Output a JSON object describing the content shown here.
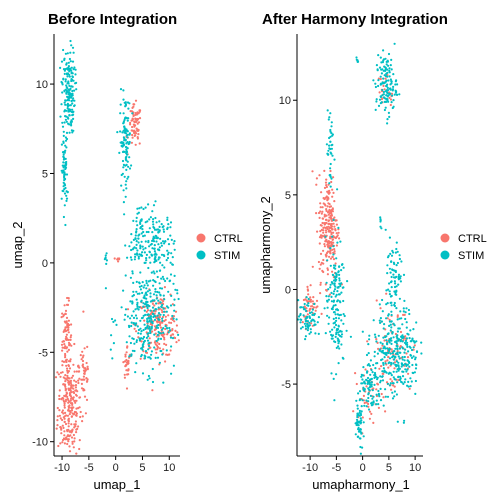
{
  "chart_data": [
    {
      "type": "scatter",
      "title": "Before Integration",
      "xlabel": "umap_1",
      "ylabel": "umap_2",
      "xlim": [
        -11.5,
        12
      ],
      "ylim": [
        -10.8,
        12.8
      ],
      "xticks": [
        -10,
        -5,
        0,
        5,
        10
      ],
      "yticks": [
        -10,
        -5,
        0,
        5,
        10
      ],
      "xtick_labels": [
        "-10",
        "-5",
        "0",
        "5",
        "10"
      ],
      "ytick_labels": [
        "-10",
        "-5",
        "0",
        "5",
        "10"
      ],
      "grid": false,
      "legend": {
        "placement": "right",
        "entries": [
          {
            "label": "CTRL",
            "color": "#F8766D"
          },
          {
            "label": "STIM",
            "color": "#00BFC4"
          }
        ]
      },
      "series": [
        {
          "name": "CTRL",
          "color": "#F8766D",
          "clusters": [
            {
              "cx": -8.6,
              "cy": -8.0,
              "sx": 1.1,
              "sy": 1.5,
              "n": 260
            },
            {
              "cx": -9.2,
              "cy": -4.3,
              "sx": 0.5,
              "sy": 1.0,
              "n": 80
            },
            {
              "cx": -5.8,
              "cy": -6.0,
              "sx": 0.5,
              "sy": 1.0,
              "n": 40
            },
            {
              "cx": 3.6,
              "cy": 7.6,
              "sx": 0.6,
              "sy": 0.6,
              "n": 70
            },
            {
              "cx": 8.0,
              "cy": -3.5,
              "sx": 2.0,
              "sy": 0.9,
              "n": 200
            },
            {
              "cx": 2.2,
              "cy": -5.6,
              "sx": 0.4,
              "sy": 0.5,
              "n": 30
            },
            {
              "cx": 0.4,
              "cy": 0.2,
              "sx": 0.2,
              "sy": 0.2,
              "n": 6
            }
          ]
        },
        {
          "name": "STIM",
          "color": "#00BFC4",
          "clusters": [
            {
              "cx": -8.8,
              "cy": 9.6,
              "sx": 0.6,
              "sy": 1.2,
              "n": 180
            },
            {
              "cx": -9.5,
              "cy": 5.0,
              "sx": 0.25,
              "sy": 1.1,
              "n": 70
            },
            {
              "cx": 1.8,
              "cy": 6.8,
              "sx": 0.5,
              "sy": 1.3,
              "n": 110
            },
            {
              "cx": 7.8,
              "cy": 0.8,
              "sx": 1.6,
              "sy": 1.1,
              "n": 160
            },
            {
              "cx": 6.0,
              "cy": -3.2,
              "sx": 2.6,
              "sy": 1.4,
              "n": 300
            },
            {
              "cx": 4.0,
              "cy": 1.2,
              "sx": 0.6,
              "sy": 0.9,
              "n": 60
            },
            {
              "cx": -1.8,
              "cy": 0.2,
              "sx": 0.2,
              "sy": 0.2,
              "n": 8
            }
          ]
        }
      ]
    },
    {
      "type": "scatter",
      "title": "After Harmony Integration",
      "xlabel": "umapharmony_1",
      "ylabel": "umapharmony_2",
      "xlim": [
        -12.5,
        11.5
      ],
      "ylim": [
        -8.8,
        13.5
      ],
      "xticks": [
        -10,
        -5,
        0,
        5,
        10
      ],
      "yticks": [
        -5,
        0,
        5,
        10
      ],
      "xtick_labels": [
        "-10",
        "-5",
        "0",
        "5",
        "10"
      ],
      "ytick_labels": [
        "-5",
        "0",
        "5",
        "10"
      ],
      "grid": false,
      "legend": {
        "placement": "right",
        "entries": [
          {
            "label": "CTRL",
            "color": "#F8766D"
          },
          {
            "label": "STIM",
            "color": "#00BFC4"
          }
        ]
      },
      "series": [
        {
          "name": "CTRL",
          "color": "#F8766D",
          "clusters": [
            {
              "cx": -6.5,
              "cy": 3.3,
              "sx": 0.9,
              "sy": 1.4,
              "n": 240
            },
            {
              "cx": -10.0,
              "cy": -0.8,
              "sx": 0.8,
              "sy": 0.6,
              "n": 50
            },
            {
              "cx": 5.5,
              "cy": -3.2,
              "sx": 2.0,
              "sy": 1.2,
              "n": 90
            },
            {
              "cx": 1.0,
              "cy": -5.5,
              "sx": 1.0,
              "sy": 0.7,
              "n": 40
            },
            {
              "cx": 4.5,
              "cy": 10.5,
              "sx": 0.8,
              "sy": 0.5,
              "n": 20
            }
          ]
        },
        {
          "name": "STIM",
          "color": "#00BFC4",
          "clusters": [
            {
              "cx": 4.5,
              "cy": 10.8,
              "sx": 1.0,
              "sy": 0.8,
              "n": 130
            },
            {
              "cx": -6.2,
              "cy": 7.5,
              "sx": 0.3,
              "sy": 1.5,
              "n": 40
            },
            {
              "cx": -5.2,
              "cy": -0.8,
              "sx": 0.9,
              "sy": 1.7,
              "n": 160
            },
            {
              "cx": -10.5,
              "cy": -1.5,
              "sx": 0.9,
              "sy": 0.5,
              "n": 70
            },
            {
              "cx": 6.5,
              "cy": -3.3,
              "sx": 2.2,
              "sy": 1.2,
              "n": 300
            },
            {
              "cx": 6.0,
              "cy": 0.5,
              "sx": 0.8,
              "sy": 1.2,
              "n": 80
            },
            {
              "cx": 1.5,
              "cy": -5.2,
              "sx": 1.0,
              "sy": 0.7,
              "n": 90
            },
            {
              "cx": -0.7,
              "cy": -7.3,
              "sx": 0.4,
              "sy": 0.7,
              "n": 50
            },
            {
              "cx": -1.0,
              "cy": 12.0,
              "sx": 0.1,
              "sy": 0.2,
              "n": 6
            },
            {
              "cx": 3.5,
              "cy": 3.6,
              "sx": 0.1,
              "sy": 0.2,
              "n": 6
            }
          ]
        }
      ]
    }
  ]
}
